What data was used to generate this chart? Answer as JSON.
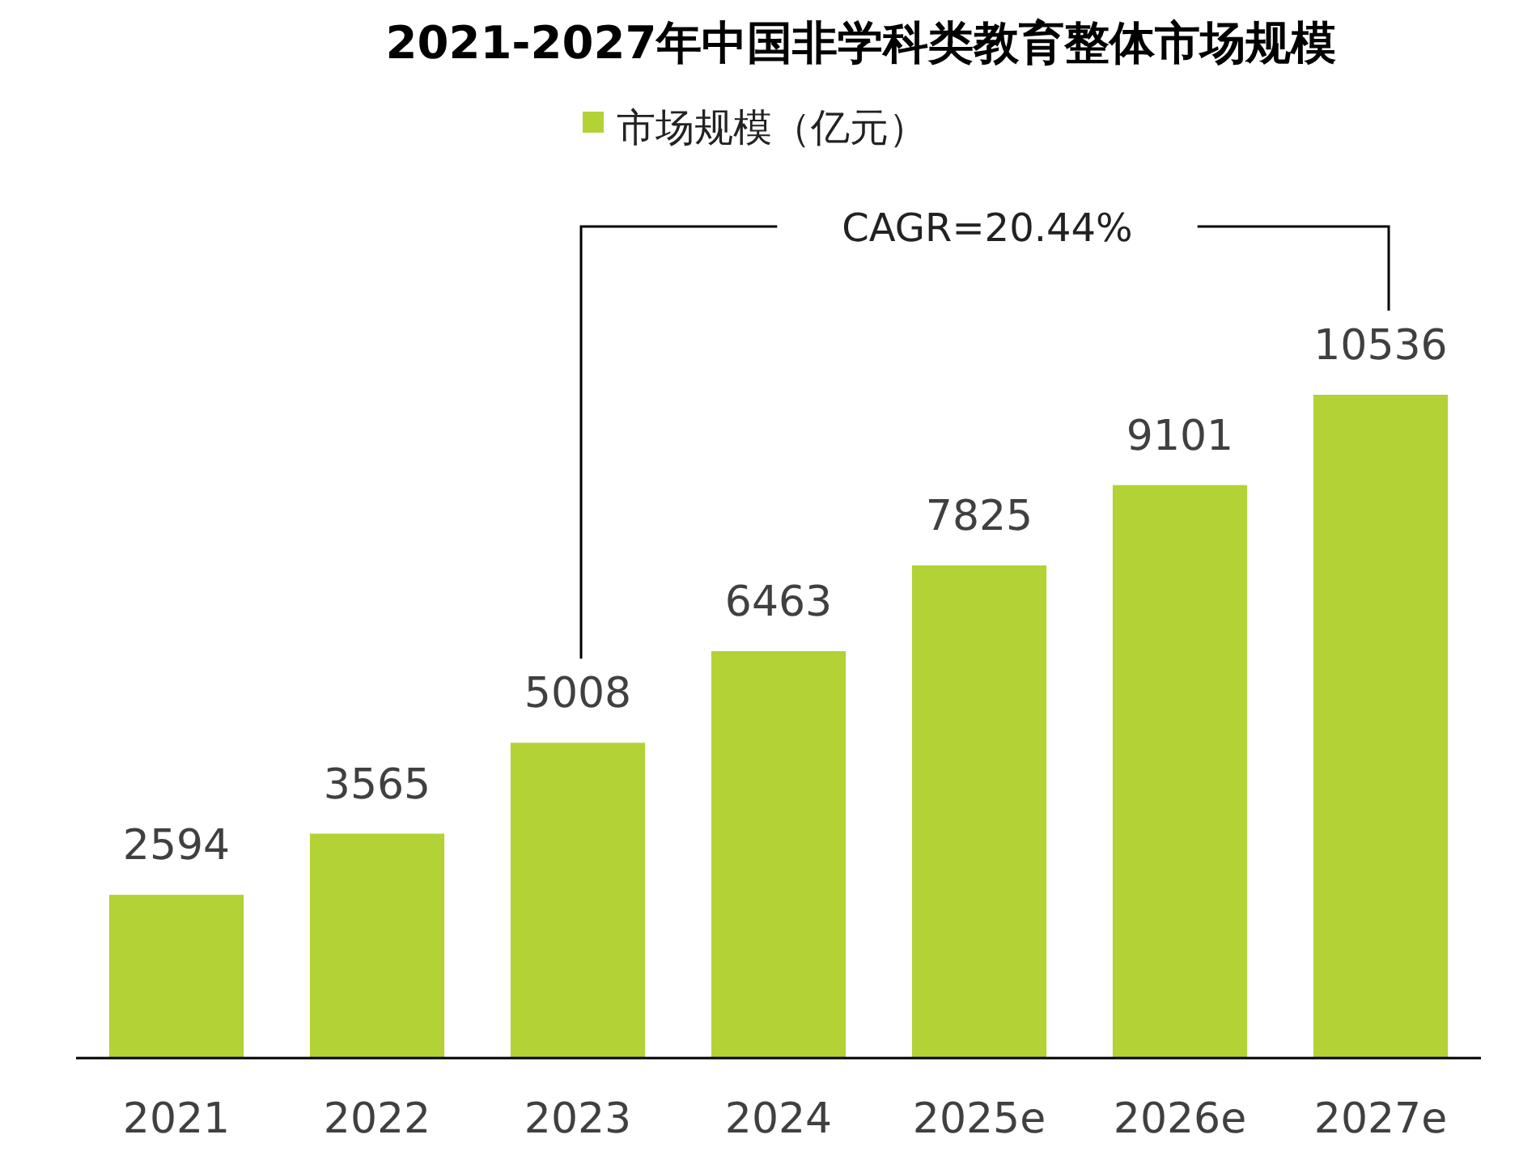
{
  "chart_data": {
    "type": "bar",
    "title": "2021-2027年中国非学科类教育整体市场规模",
    "categories": [
      "2021",
      "2022",
      "2023",
      "2024",
      "2025e",
      "2026e",
      "2027e"
    ],
    "series": [
      {
        "name": "市场规模（亿元）",
        "color": "#b2d235",
        "values": [
          2594,
          3565,
          5008,
          6463,
          7825,
          9101,
          10536
        ]
      }
    ],
    "data_labels": true,
    "legend": "top",
    "annotations": [
      "CAGR=20.44%"
    ]
  }
}
